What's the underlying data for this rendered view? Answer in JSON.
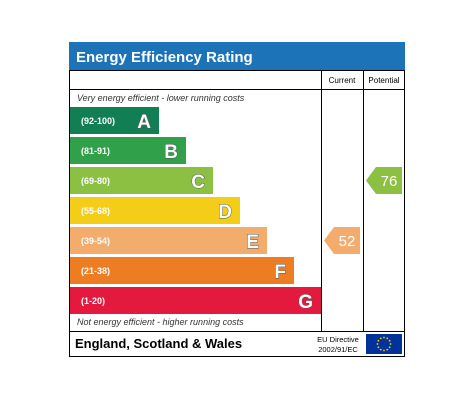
{
  "title": "Energy Efficiency Rating",
  "columns": {
    "current": "Current",
    "potential": "Potential"
  },
  "top_note": "Very energy efficient - lower running costs",
  "bottom_note": "Not energy efficient - higher running costs",
  "footer": {
    "region": "England, Scotland & Wales",
    "directive_line1": "EU Directive",
    "directive_line2": "2002/91/EC",
    "flag_icon": "eu-flag-icon"
  },
  "colors": {
    "header": "#1d73b8",
    "border": "#000000",
    "eu_flag": "#003399",
    "eu_stars": "#ffcc00"
  },
  "chart_data": {
    "type": "bar",
    "bands": [
      {
        "letter": "A",
        "range": "(92-100)",
        "color": "#117e53"
      },
      {
        "letter": "B",
        "range": "(81-91)",
        "color": "#30a04a"
      },
      {
        "letter": "C",
        "range": "(69-80)",
        "color": "#8cc043"
      },
      {
        "letter": "D",
        "range": "(55-68)",
        "color": "#f4cd19"
      },
      {
        "letter": "E",
        "range": "(39-54)",
        "color": "#f2ac6c"
      },
      {
        "letter": "F",
        "range": "(21-38)",
        "color": "#ed7d22"
      },
      {
        "letter": "G",
        "range": "(1-20)",
        "color": "#e3193e"
      }
    ],
    "current": {
      "value": 52,
      "band": "E",
      "color": "#f2ac6c"
    },
    "potential": {
      "value": 76,
      "band": "C",
      "color": "#8cc043"
    }
  }
}
